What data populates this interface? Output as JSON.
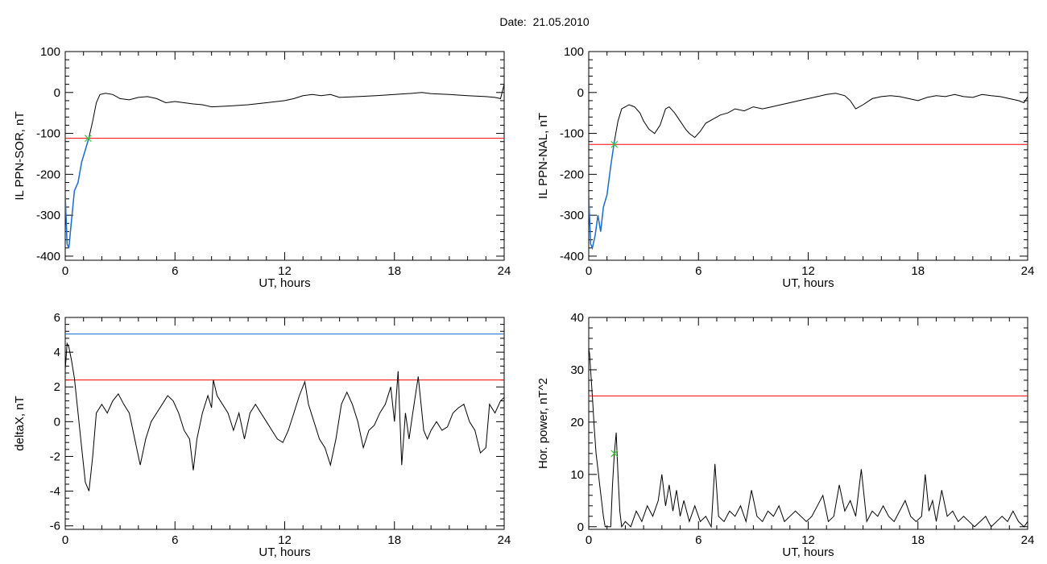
{
  "page_title": "Date:  21.05.2010",
  "colors": {
    "trace": "#000000",
    "threshold": "#ff0000",
    "blue": "#1a6fd6",
    "marker": "#33cc33",
    "axis": "#000000"
  },
  "chart_data": [
    {
      "type": "line",
      "xlabel": "UT, hours",
      "ylabel": "IL PPN-SOR, nT",
      "xlim": [
        0,
        24
      ],
      "ylim": [
        -410,
        100
      ],
      "xticks": [
        0,
        6,
        12,
        18,
        24
      ],
      "yticks": [
        -400,
        -300,
        -200,
        -100,
        0,
        100
      ],
      "grid": false,
      "trace": {
        "x": [
          0,
          0.1,
          0.2,
          0.35,
          0.5,
          0.7,
          0.9,
          1.1,
          1.3,
          1.5,
          1.7,
          1.9,
          2.2,
          2.6,
          3.0,
          3.5,
          4.0,
          4.5,
          5.0,
          5.5,
          6.0,
          6.5,
          7.0,
          7.5,
          8.0,
          9.0,
          10.0,
          11.0,
          12.0,
          12.5,
          13.0,
          13.5,
          14.0,
          14.5,
          15.0,
          16.0,
          17.0,
          18.0,
          19.0,
          19.5,
          20.0,
          21.0,
          22.0,
          23.0,
          23.5,
          23.8,
          24.0
        ],
        "y": [
          -250,
          -370,
          -380,
          -310,
          -240,
          -220,
          -170,
          -140,
          -110,
          -70,
          -25,
          -5,
          -2,
          -5,
          -15,
          -18,
          -12,
          -10,
          -15,
          -25,
          -22,
          -25,
          -28,
          -30,
          -35,
          -33,
          -30,
          -25,
          -20,
          -15,
          -8,
          -5,
          -8,
          -5,
          -12,
          -10,
          -8,
          -5,
          -2,
          0,
          -3,
          -5,
          -8,
          -10,
          -12,
          -15,
          20
        ]
      },
      "highlight": {
        "x": [
          0,
          0.1,
          0.2,
          0.35,
          0.5,
          0.7,
          0.9,
          1.1,
          1.3
        ],
        "y": [
          -250,
          -370,
          -380,
          -310,
          -240,
          -220,
          -170,
          -140,
          -110
        ]
      },
      "threshold": -112,
      "marker": {
        "x": 1.25,
        "y": -112
      }
    },
    {
      "type": "line",
      "xlabel": "UT, hours",
      "ylabel": "IL PPN-NAL, nT",
      "xlim": [
        0,
        24
      ],
      "ylim": [
        -410,
        100
      ],
      "xticks": [
        0,
        6,
        12,
        18,
        24
      ],
      "yticks": [
        -400,
        -300,
        -200,
        -100,
        0,
        100
      ],
      "grid": false,
      "trace": {
        "x": [
          0,
          0.1,
          0.2,
          0.35,
          0.5,
          0.65,
          0.8,
          1.0,
          1.2,
          1.4,
          1.6,
          1.8,
          2.0,
          2.2,
          2.5,
          2.8,
          3.0,
          3.3,
          3.6,
          3.9,
          4.2,
          4.4,
          4.7,
          5.0,
          5.3,
          5.5,
          5.8,
          6.1,
          6.4,
          6.8,
          7.2,
          7.6,
          8.0,
          8.5,
          9.0,
          9.5,
          10.0,
          10.5,
          11.0,
          11.5,
          12.0,
          12.5,
          13.0,
          13.5,
          14.0,
          14.3,
          14.6,
          15.0,
          15.5,
          16.0,
          16.5,
          17.0,
          17.5,
          18.0,
          18.5,
          19.0,
          19.5,
          20.0,
          20.5,
          21.0,
          21.5,
          22.0,
          22.5,
          23.0,
          23.5,
          23.8,
          24.0
        ],
        "y": [
          -250,
          -370,
          -380,
          -350,
          -300,
          -340,
          -280,
          -250,
          -180,
          -120,
          -70,
          -40,
          -35,
          -30,
          -35,
          -50,
          -70,
          -90,
          -100,
          -80,
          -40,
          -35,
          -50,
          -70,
          -90,
          -100,
          -110,
          -95,
          -75,
          -65,
          -55,
          -50,
          -40,
          -45,
          -35,
          -40,
          -35,
          -30,
          -25,
          -20,
          -15,
          -10,
          -5,
          -2,
          -8,
          -20,
          -40,
          -30,
          -15,
          -10,
          -8,
          -10,
          -15,
          -20,
          -12,
          -8,
          -10,
          -5,
          -10,
          -12,
          -5,
          -8,
          -10,
          -15,
          -20,
          -25,
          -10
        ]
      },
      "highlight": {
        "x": [
          0,
          0.1,
          0.2,
          0.35,
          0.5,
          0.65,
          0.8,
          1.0,
          1.2,
          1.4
        ],
        "y": [
          -250,
          -370,
          -380,
          -350,
          -300,
          -340,
          -280,
          -250,
          -180,
          -120
        ]
      },
      "threshold": -127,
      "marker": {
        "x": 1.4,
        "y": -127
      }
    },
    {
      "type": "line",
      "xlabel": "UT, hours",
      "ylabel": "deltaX, nT",
      "xlim": [
        0,
        24
      ],
      "ylim": [
        -6.2,
        6
      ],
      "xticks": [
        0,
        6,
        12,
        18,
        24
      ],
      "yticks": [
        -6,
        -4,
        -2,
        0,
        2,
        4,
        6
      ],
      "grid": false,
      "trace": {
        "x": [
          0,
          0.1,
          0.2,
          0.35,
          0.5,
          0.7,
          0.9,
          1.1,
          1.3,
          1.5,
          1.7,
          2.0,
          2.3,
          2.6,
          2.9,
          3.2,
          3.5,
          3.8,
          4.1,
          4.4,
          4.7,
          5.0,
          5.3,
          5.6,
          5.9,
          6.2,
          6.5,
          6.8,
          7.0,
          7.2,
          7.5,
          7.8,
          8.0,
          8.1,
          8.3,
          8.6,
          8.9,
          9.2,
          9.5,
          9.8,
          10.1,
          10.4,
          10.7,
          11.0,
          11.3,
          11.6,
          11.9,
          12.2,
          12.5,
          12.8,
          13.1,
          13.3,
          13.6,
          13.9,
          14.2,
          14.5,
          14.8,
          15.1,
          15.4,
          15.7,
          16.0,
          16.3,
          16.6,
          16.9,
          17.2,
          17.5,
          17.8,
          18.0,
          18.2,
          18.4,
          18.6,
          18.8,
          19.0,
          19.3,
          19.6,
          19.8,
          20.0,
          20.3,
          20.6,
          20.9,
          21.2,
          21.5,
          21.8,
          22.1,
          22.4,
          22.7,
          23.0,
          23.2,
          23.5,
          23.8,
          24.0
        ],
        "y": [
          3.0,
          4.5,
          4.3,
          3.5,
          2.5,
          0.5,
          -1.5,
          -3.5,
          -4.0,
          -2.0,
          0.5,
          1.0,
          0.5,
          1.2,
          1.6,
          1.0,
          0.5,
          -1.0,
          -2.5,
          -1.0,
          0.0,
          0.5,
          1.0,
          1.5,
          1.2,
          0.5,
          -0.5,
          -1.0,
          -2.8,
          -1.0,
          0.5,
          1.5,
          0.8,
          2.4,
          1.5,
          1.0,
          0.5,
          -0.5,
          0.5,
          -1.0,
          0.5,
          1.0,
          0.5,
          0.0,
          -0.5,
          -1.0,
          -1.2,
          -0.5,
          0.5,
          1.5,
          2.3,
          1.0,
          0.0,
          -1.0,
          -1.5,
          -2.5,
          -1.0,
          1.0,
          1.7,
          1.0,
          0.0,
          -1.5,
          -0.5,
          -0.2,
          0.5,
          1.0,
          2.0,
          0.0,
          2.9,
          -2.5,
          0.5,
          -1.0,
          0.5,
          2.6,
          -0.5,
          -1.0,
          -0.5,
          0.0,
          -0.5,
          -0.3,
          0.5,
          0.8,
          1.0,
          0.0,
          -0.5,
          -1.8,
          -1.5,
          1.0,
          0.5,
          1.2,
          1.4
        ]
      },
      "threshold": 2.4,
      "blue_line": 5.05
    },
    {
      "type": "line",
      "xlabel": "UT, hours",
      "ylabel": "Hor. power, nT^2",
      "xlim": [
        0,
        24
      ],
      "ylim": [
        -0.5,
        40
      ],
      "xticks": [
        0,
        6,
        12,
        18,
        24
      ],
      "yticks": [
        0,
        10,
        20,
        30,
        40
      ],
      "grid": false,
      "trace": {
        "x": [
          0,
          0.05,
          0.1,
          0.2,
          0.3,
          0.4,
          0.5,
          0.6,
          0.7,
          0.8,
          0.9,
          1.0,
          1.1,
          1.2,
          1.3,
          1.4,
          1.5,
          1.6,
          1.7,
          1.8,
          2.0,
          2.3,
          2.6,
          2.9,
          3.2,
          3.5,
          3.8,
          4.0,
          4.2,
          4.4,
          4.6,
          4.8,
          5.0,
          5.2,
          5.5,
          5.8,
          6.1,
          6.4,
          6.7,
          6.9,
          7.1,
          7.4,
          7.7,
          8.0,
          8.3,
          8.6,
          8.9,
          9.2,
          9.5,
          9.8,
          10.1,
          10.4,
          10.7,
          11.0,
          11.3,
          11.6,
          11.9,
          12.2,
          12.5,
          12.8,
          13.1,
          13.4,
          13.7,
          14.0,
          14.3,
          14.6,
          14.9,
          15.2,
          15.5,
          15.8,
          16.1,
          16.4,
          16.7,
          17.0,
          17.3,
          17.6,
          17.9,
          18.2,
          18.4,
          18.6,
          18.8,
          19.0,
          19.3,
          19.6,
          19.9,
          20.2,
          20.5,
          20.8,
          21.1,
          21.4,
          21.7,
          22.0,
          22.3,
          22.6,
          22.9,
          23.2,
          23.5,
          23.8,
          24.0
        ],
        "y": [
          34,
          33,
          30,
          25,
          19,
          14,
          11,
          8,
          5,
          2,
          0,
          0,
          0,
          0,
          8,
          14,
          18,
          10,
          3,
          0,
          1,
          0,
          3,
          1,
          4,
          2,
          5,
          10,
          4,
          8,
          3,
          7,
          2,
          5,
          1,
          4,
          1,
          2,
          0,
          12,
          2,
          1,
          3,
          2,
          4,
          1,
          7,
          2,
          1,
          3,
          2,
          4,
          1,
          2,
          3,
          2,
          1,
          2,
          4,
          6,
          1,
          2,
          8,
          3,
          5,
          2,
          11,
          1,
          3,
          2,
          4,
          2,
          1,
          3,
          5,
          2,
          1,
          2,
          10,
          3,
          5,
          1,
          7,
          2,
          3,
          1,
          2,
          1,
          0,
          1,
          2,
          0,
          1,
          2,
          1,
          3,
          1,
          0,
          1
        ]
      },
      "threshold": 25,
      "marker": {
        "x": 1.4,
        "y": 14
      }
    }
  ]
}
